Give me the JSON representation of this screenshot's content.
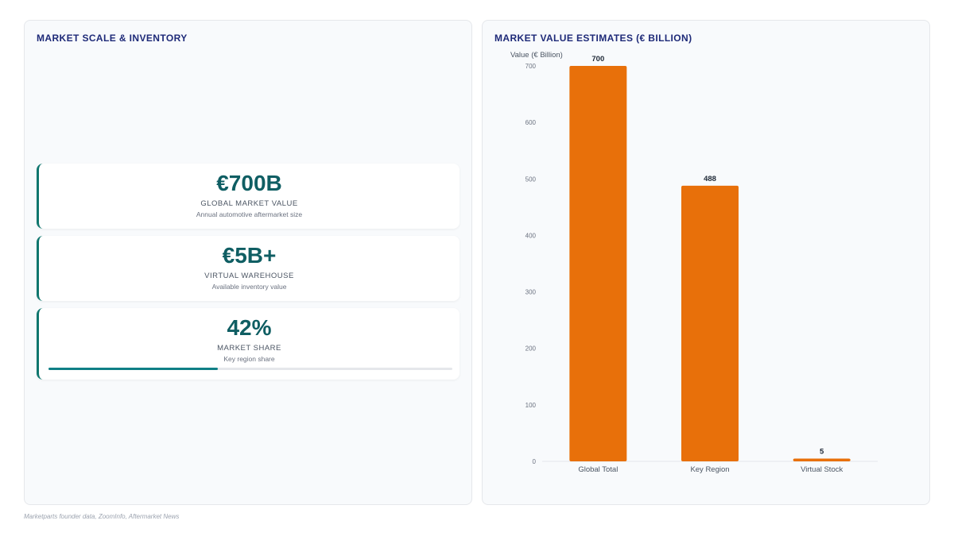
{
  "left_panel": {
    "title": "MARKET SCALE & INVENTORY",
    "kpis": [
      {
        "value": "€700B",
        "label": "GLOBAL MARKET VALUE",
        "sub": "Annual automotive aftermarket size"
      },
      {
        "value": "€5B+",
        "label": "VIRTUAL WAREHOUSE",
        "sub": "Available inventory value"
      },
      {
        "value": "42%",
        "label": "MARKET SHARE",
        "sub": "Key region share",
        "progress": 0.42
      }
    ]
  },
  "right_panel": {
    "title": "MARKET VALUE ESTIMATES (€ BILLION)"
  },
  "chart_data": {
    "type": "bar",
    "title": "MARKET VALUE ESTIMATES (€ BILLION)",
    "categories": [
      "Global Total",
      "Key Region",
      "Virtual Stock"
    ],
    "values": [
      700,
      488,
      5
    ],
    "data_labels": [
      "700",
      "488",
      "5"
    ],
    "ylabel": "Value (€ Billion)",
    "xlabel": "",
    "ylim": [
      0,
      700
    ],
    "yticks": [
      0,
      100,
      200,
      300,
      400,
      500,
      600,
      700
    ],
    "bar_color": "#e8700a",
    "grid": false,
    "legend": "none"
  },
  "footer": {
    "source": "Marketparts founder data, ZoomInfo, Aftermarket News"
  },
  "colors": {
    "accent": "#0f766e",
    "bar": "#e8700a",
    "title": "#1e2a78"
  }
}
